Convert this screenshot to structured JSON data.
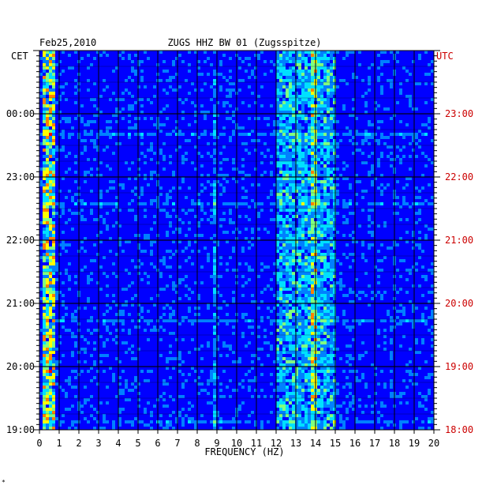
{
  "chart_data": {
    "type": "heatmap",
    "title": "ZUGS HHZ BW 01 (Zugsspitze)",
    "date": "Feb25,2010",
    "left_timezone": "CET",
    "right_timezone": "UTC",
    "xlabel": "FREQUENCY (HZ)",
    "xlim": [
      0,
      20
    ],
    "x_ticks": [
      "0",
      "1",
      "2",
      "3",
      "4",
      "5",
      "6",
      "7",
      "8",
      "9",
      "10",
      "11",
      "12",
      "13",
      "14",
      "15",
      "16",
      "17",
      "18",
      "19",
      "20"
    ],
    "y_ticks_left": [
      "19:00",
      "20:00",
      "21:00",
      "22:00",
      "23:00",
      "00:00"
    ],
    "y_ticks_right": [
      "18:00",
      "19:00",
      "20:00",
      "21:00",
      "22:00",
      "23:00"
    ],
    "y_tick_hours_before_top": [
      6,
      5,
      4,
      3,
      2,
      1
    ],
    "hours_shown": 6,
    "grid": true,
    "colormap": [
      "#00008b",
      "#0000ff",
      "#0080ff",
      "#00e0ff",
      "#80ff80",
      "#ffff00",
      "#ff8000",
      "#ff0000"
    ],
    "features": [
      {
        "name": "microseism band",
        "freq_range": [
          0.1,
          0.8
        ],
        "intensity": "high"
      },
      {
        "name": "station noise band",
        "freq_range": [
          12,
          15
        ],
        "intensity": "medium"
      },
      {
        "name": "narrow line",
        "freq_range": [
          8.8,
          9.0
        ],
        "intensity": "low"
      },
      {
        "name": "narrow line",
        "freq_range": [
          13.8,
          14.0
        ],
        "intensity": "medium"
      }
    ]
  },
  "colors": {
    "left_axis_text": "#000000",
    "right_axis_text": "#cc0000",
    "background": "#ffffff",
    "grid": "#000000"
  },
  "footer_mark": "*"
}
